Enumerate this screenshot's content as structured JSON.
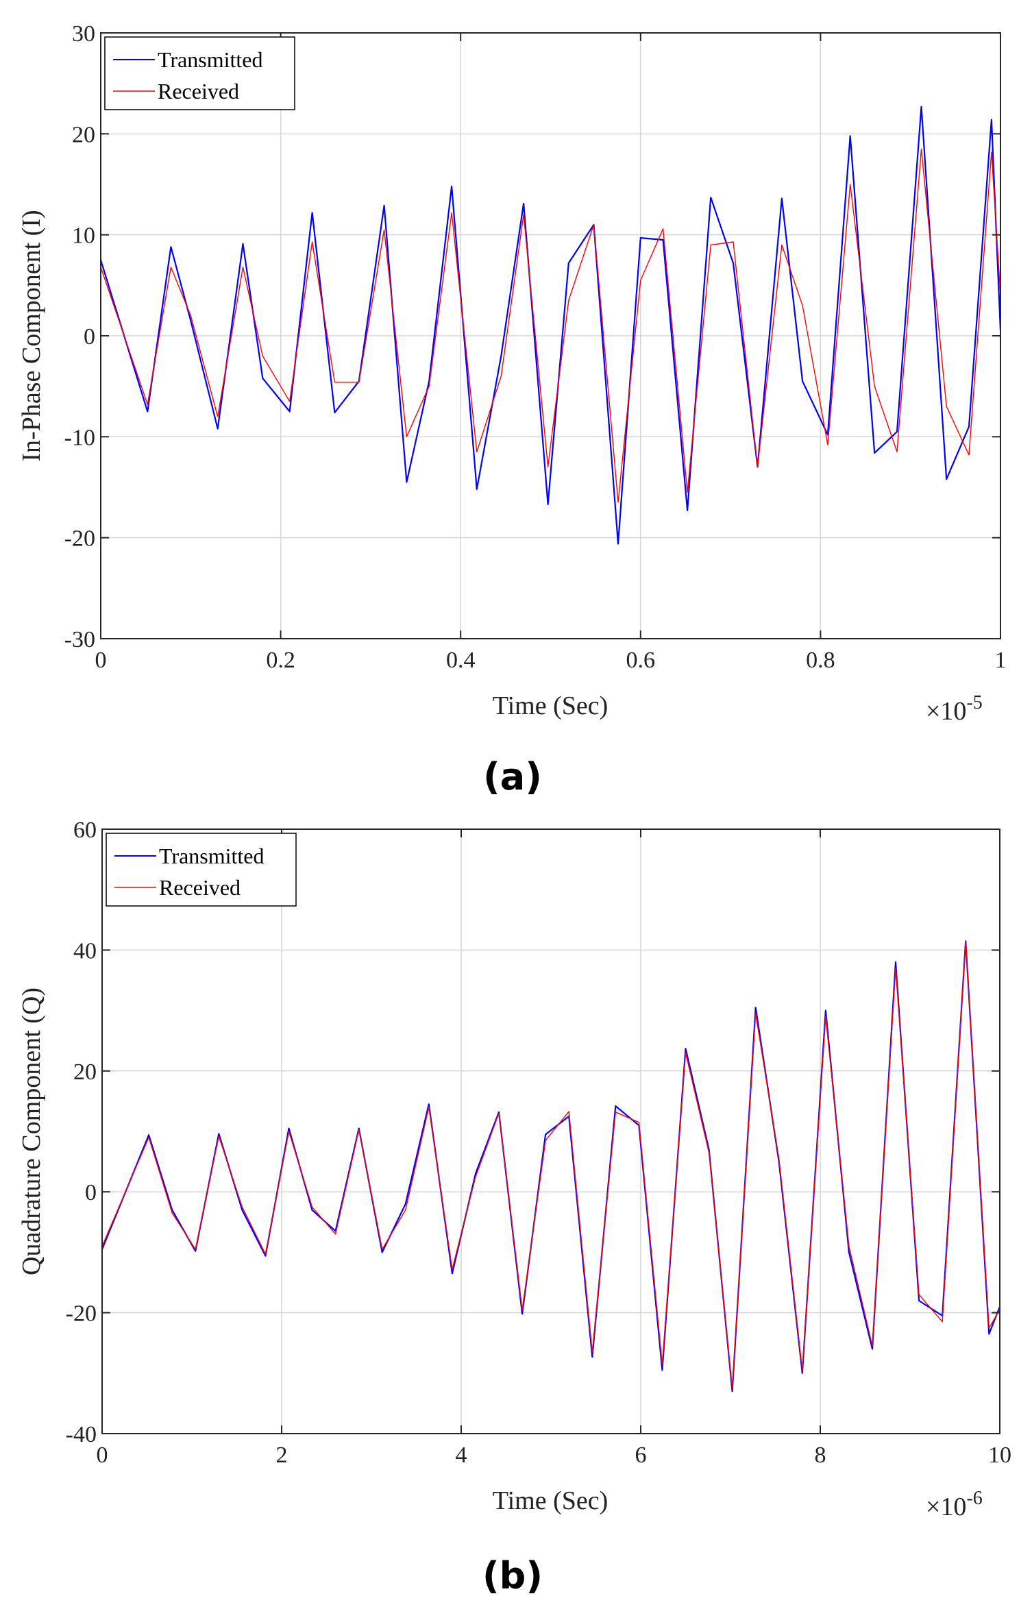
{
  "chart_data": [
    {
      "type": "line",
      "panel_label": "(a)",
      "xlabel": "Time (Sec)",
      "ylabel": "In-Phase Component (I)",
      "x_multiplier": "×10",
      "x_multiplier_exp": "-5",
      "xlim": [
        0,
        1
      ],
      "ylim": [
        -30,
        30
      ],
      "xticks": [
        0,
        0.2,
        0.4,
        0.6,
        0.8,
        1
      ],
      "xtick_labels": [
        "0",
        "0.2",
        "0.4",
        "0.6",
        "0.8",
        "1"
      ],
      "yticks": [
        -30,
        -20,
        -10,
        0,
        10,
        20,
        30
      ],
      "ytick_labels": [
        "-30",
        "-20",
        "-10",
        "0",
        "10",
        "20",
        "30"
      ],
      "grid": true,
      "legend_position": "top-left",
      "series": [
        {
          "name": "Transmitted",
          "color": "#0000ff",
          "x": [
            0,
            0.052,
            0.078,
            0.1,
            0.13,
            0.158,
            0.18,
            0.21,
            0.235,
            0.26,
            0.287,
            0.315,
            0.34,
            0.365,
            0.39,
            0.418,
            0.445,
            0.47,
            0.497,
            0.52,
            0.548,
            0.575,
            0.6,
            0.625,
            0.652,
            0.678,
            0.703,
            0.73,
            0.757,
            0.78,
            0.808,
            0.833,
            0.86,
            0.885,
            0.912,
            0.94,
            0.965,
            0.99,
            1.0
          ],
          "values": [
            7.5,
            -7.5,
            8.8,
            1.5,
            -9.2,
            9.1,
            -4.2,
            -7.5,
            12.2,
            -7.6,
            -4.5,
            12.9,
            -14.5,
            -4.5,
            14.8,
            -15.2,
            -2.0,
            13.1,
            -16.7,
            7.2,
            11.0,
            -20.6,
            9.7,
            9.5,
            -17.3,
            13.7,
            7.2,
            -13.0,
            13.6,
            -4.5,
            -9.8,
            19.8,
            -11.6,
            -9.5,
            22.7,
            -14.2,
            -9.0,
            21.4,
            0.5
          ]
        },
        {
          "name": "Received",
          "color": "#ff0000",
          "x": [
            0,
            0.052,
            0.078,
            0.1,
            0.13,
            0.158,
            0.18,
            0.21,
            0.235,
            0.26,
            0.287,
            0.315,
            0.34,
            0.365,
            0.39,
            0.418,
            0.445,
            0.47,
            0.497,
            0.52,
            0.548,
            0.575,
            0.6,
            0.625,
            0.652,
            0.678,
            0.703,
            0.73,
            0.757,
            0.78,
            0.808,
            0.833,
            0.86,
            0.885,
            0.912,
            0.94,
            0.965,
            0.99,
            1.0
          ],
          "values": [
            6.8,
            -6.8,
            6.8,
            2.0,
            -8.0,
            6.8,
            -2.0,
            -6.5,
            9.3,
            -4.6,
            -4.6,
            10.5,
            -10.0,
            -5.0,
            12.2,
            -11.5,
            -4.0,
            12.0,
            -13.0,
            3.5,
            11.0,
            -16.5,
            5.5,
            10.6,
            -15.5,
            9.0,
            9.3,
            -13.0,
            9.0,
            3.0,
            -10.8,
            15.0,
            -5.0,
            -11.5,
            18.5,
            -7.0,
            -11.8,
            18.2,
            4.0
          ]
        }
      ]
    },
    {
      "type": "line",
      "panel_label": "(b)",
      "xlabel": "Time (Sec)",
      "ylabel": "Quadrature Component (Q)",
      "x_multiplier": "×10",
      "x_multiplier_exp": "-6",
      "xlim": [
        0,
        10
      ],
      "ylim": [
        -40,
        60
      ],
      "xticks": [
        0,
        2,
        4,
        6,
        8,
        10
      ],
      "xtick_labels": [
        "0",
        "2",
        "4",
        "6",
        "8",
        "10"
      ],
      "yticks": [
        -40,
        -20,
        0,
        20,
        40,
        60
      ],
      "ytick_labels": [
        "-40",
        "-20",
        "0",
        "20",
        "40",
        "60"
      ],
      "grid": true,
      "legend_position": "top-left",
      "series": [
        {
          "name": "Transmitted",
          "color": "#0000ff",
          "x": [
            0,
            0.52,
            0.78,
            1.04,
            1.3,
            1.56,
            1.82,
            2.08,
            2.34,
            2.6,
            2.86,
            3.12,
            3.38,
            3.64,
            3.9,
            4.16,
            4.42,
            4.68,
            4.94,
            5.2,
            5.46,
            5.72,
            5.98,
            6.24,
            6.5,
            6.76,
            7.02,
            7.28,
            7.54,
            7.8,
            8.06,
            8.32,
            8.58,
            8.84,
            9.1,
            9.36,
            9.62,
            9.88,
            10.0
          ],
          "values": [
            -9.5,
            9.4,
            -3.0,
            -9.8,
            9.6,
            -3.0,
            -10.6,
            10.5,
            -3.0,
            -6.5,
            10.5,
            -10.0,
            -2.0,
            14.5,
            -13.5,
            3.0,
            13.2,
            -20.2,
            9.5,
            12.5,
            -27.3,
            14.2,
            11.0,
            -29.5,
            23.7,
            7.0,
            -33.0,
            30.5,
            5.0,
            -30.0,
            30.0,
            -10.0,
            -26.0,
            38.0,
            -18.0,
            -20.5,
            41.5,
            -23.5,
            -19.0
          ]
        },
        {
          "name": "Received",
          "color": "#ff0000",
          "x": [
            0,
            0.52,
            0.78,
            1.04,
            1.3,
            1.56,
            1.82,
            2.08,
            2.34,
            2.6,
            2.86,
            3.12,
            3.38,
            3.64,
            3.9,
            4.16,
            4.42,
            4.68,
            4.94,
            5.2,
            5.46,
            5.72,
            5.98,
            6.24,
            6.5,
            6.76,
            7.02,
            7.28,
            7.54,
            7.8,
            8.06,
            8.32,
            8.58,
            8.84,
            9.1,
            9.36,
            9.62,
            9.88,
            10.0
          ],
          "values": [
            -9.0,
            9.0,
            -3.5,
            -9.5,
            9.2,
            -2.5,
            -10.3,
            10.0,
            -2.5,
            -7.0,
            10.3,
            -9.5,
            -3.0,
            14.0,
            -12.8,
            2.5,
            13.0,
            -19.5,
            8.5,
            13.3,
            -26.5,
            13.2,
            11.5,
            -28.5,
            23.0,
            6.5,
            -32.5,
            29.5,
            5.5,
            -29.5,
            29.0,
            -9.0,
            -25.5,
            37.0,
            -17.0,
            -21.5,
            41.5,
            -22.5,
            -19.5
          ]
        }
      ]
    }
  ]
}
